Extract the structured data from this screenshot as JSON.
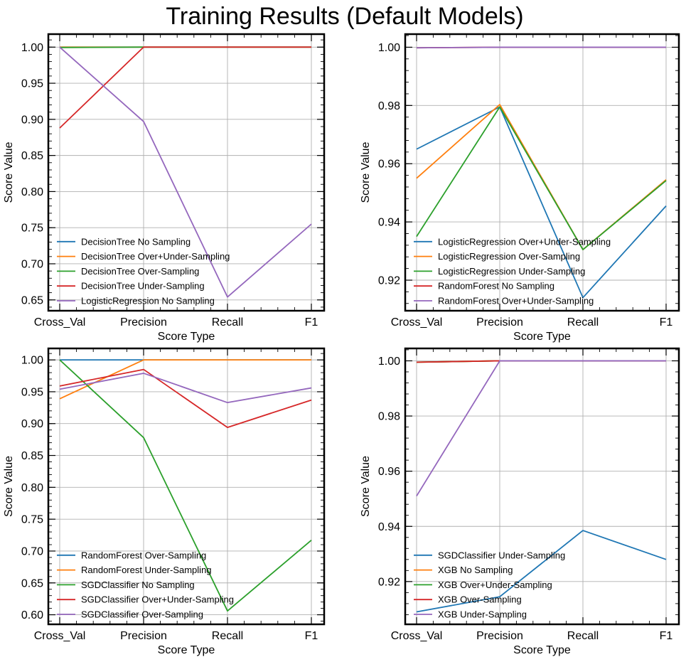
{
  "figure": {
    "suptitle": "Training Results (Default Models)"
  },
  "palette": [
    "#1f77b4",
    "#ff7f0e",
    "#2ca02c",
    "#d62728",
    "#9467bd"
  ],
  "chart_data": [
    {
      "type": "line",
      "categories": [
        "Cross_Val",
        "Precision",
        "Recall",
        "F1"
      ],
      "xlabel": "Score Type",
      "ylabel": "Score Value",
      "ylim": [
        0.635,
        1.018
      ],
      "yticks": [
        0.65,
        0.7,
        0.75,
        0.8,
        0.85,
        0.9,
        0.95,
        1.0
      ],
      "ytick_labels": [
        "0.65",
        "0.70",
        "0.75",
        "0.80",
        "0.85",
        "0.90",
        "0.95",
        "1.00"
      ],
      "legend_position": "lower-left",
      "series": [
        {
          "name": "DecisionTree No Sampling",
          "values": [
            1.0,
            1.0,
            1.0,
            1.0
          ]
        },
        {
          "name": "DecisionTree Over+Under-Sampling",
          "values": [
            1.0,
            1.0,
            1.0,
            1.0
          ]
        },
        {
          "name": "DecisionTree Over-Sampling",
          "values": [
            0.9995,
            1.0,
            1.0,
            1.0
          ]
        },
        {
          "name": "DecisionTree Under-Sampling",
          "values": [
            0.888,
            1.0,
            1.0,
            1.0
          ]
        },
        {
          "name": "LogisticRegression No Sampling",
          "values": [
            1.0,
            0.897,
            0.654,
            0.755
          ]
        }
      ]
    },
    {
      "type": "line",
      "categories": [
        "Cross_Val",
        "Precision",
        "Recall",
        "F1"
      ],
      "xlabel": "Score Type",
      "ylabel": "Score Value",
      "ylim": [
        0.9095,
        1.0045
      ],
      "yticks": [
        0.92,
        0.94,
        0.96,
        0.98,
        1.0
      ],
      "ytick_labels": [
        "0.92",
        "0.94",
        "0.96",
        "0.98",
        "1.00"
      ],
      "legend_position": "lower-left",
      "series": [
        {
          "name": "LogisticRegression Over+Under-Sampling",
          "values": [
            0.965,
            0.9795,
            0.914,
            0.9455
          ]
        },
        {
          "name": "LogisticRegression Over-Sampling",
          "values": [
            0.955,
            0.9803,
            0.9305,
            0.9545
          ]
        },
        {
          "name": "LogisticRegression Under-Sampling",
          "values": [
            0.935,
            0.9795,
            0.9305,
            0.9542
          ]
        },
        {
          "name": "RandomForest No Sampling",
          "values": [
            0.9998,
            1.0,
            1.0,
            1.0
          ]
        },
        {
          "name": "RandomForest Over+Under-Sampling",
          "values": [
            0.9998,
            1.0,
            1.0,
            1.0
          ]
        }
      ]
    },
    {
      "type": "line",
      "categories": [
        "Cross_Val",
        "Precision",
        "Recall",
        "F1"
      ],
      "xlabel": "Score Type",
      "ylabel": "Score Value",
      "ylim": [
        0.585,
        1.018
      ],
      "yticks": [
        0.6,
        0.65,
        0.7,
        0.75,
        0.8,
        0.85,
        0.9,
        0.95,
        1.0
      ],
      "ytick_labels": [
        "0.60",
        "0.65",
        "0.70",
        "0.75",
        "0.80",
        "0.85",
        "0.90",
        "0.95",
        "1.00"
      ],
      "legend_position": "lower-left",
      "series": [
        {
          "name": "RandomForest Over-Sampling",
          "values": [
            1.0,
            1.0,
            1.0,
            1.0
          ]
        },
        {
          "name": "RandomForest Under-Sampling",
          "values": [
            0.939,
            1.0,
            1.0,
            1.0
          ]
        },
        {
          "name": "SGDClassifier No Sampling",
          "values": [
            1.0,
            0.878,
            0.606,
            0.717
          ]
        },
        {
          "name": "SGDClassifier Over+Under-Sampling",
          "values": [
            0.959,
            0.985,
            0.894,
            0.937
          ]
        },
        {
          "name": "SGDClassifier Over-Sampling",
          "values": [
            0.954,
            0.979,
            0.933,
            0.956
          ]
        }
      ]
    },
    {
      "type": "line",
      "categories": [
        "Cross_Val",
        "Precision",
        "Recall",
        "F1"
      ],
      "xlabel": "Score Type",
      "ylabel": "Score Value",
      "ylim": [
        0.9045,
        1.0045
      ],
      "yticks": [
        0.92,
        0.94,
        0.96,
        0.98,
        1.0
      ],
      "ytick_labels": [
        "0.92",
        "0.94",
        "0.96",
        "0.98",
        "1.00"
      ],
      "legend_position": "lower-left",
      "series": [
        {
          "name": "SGDClassifier Under-Sampling",
          "values": [
            0.909,
            0.9145,
            0.9385,
            0.928
          ]
        },
        {
          "name": "XGB No Sampling",
          "values": [
            0.9995,
            1.0,
            1.0,
            1.0
          ]
        },
        {
          "name": "XGB Over+Under-Sampling",
          "values": [
            0.9995,
            1.0,
            1.0,
            1.0
          ]
        },
        {
          "name": "XGB Over-Sampling",
          "values": [
            0.9995,
            1.0,
            1.0,
            1.0
          ]
        },
        {
          "name": "XGB Under-Sampling",
          "values": [
            0.951,
            1.0,
            1.0,
            1.0
          ]
        }
      ]
    }
  ]
}
